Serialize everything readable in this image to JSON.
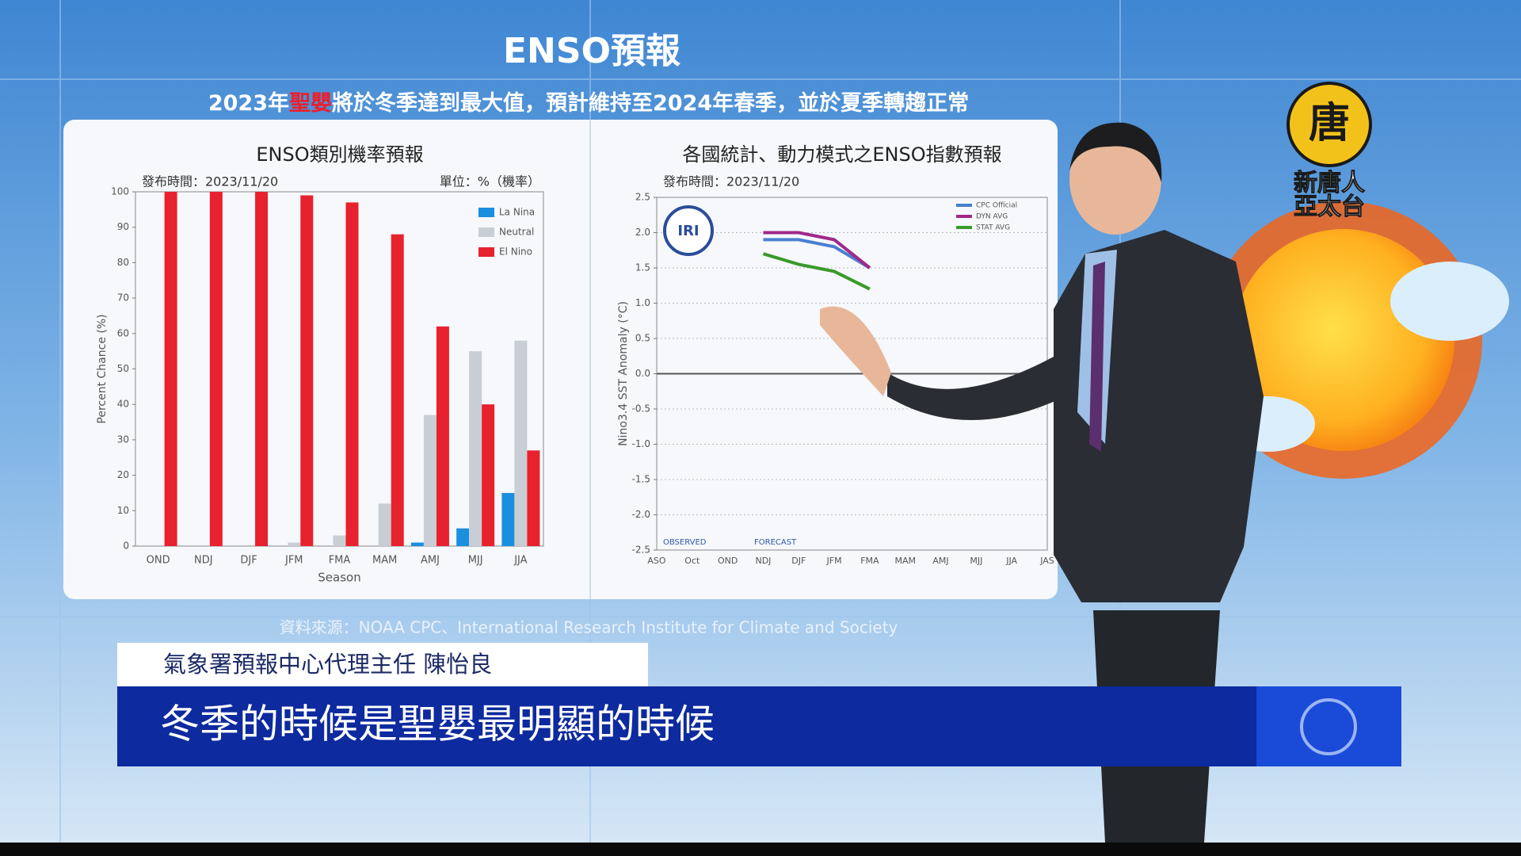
{
  "header": {
    "title": "ENSO預報",
    "subtitle": [
      "2023年",
      "聖嬰",
      "將於冬季達到最大值，預計維持至2024年春季，並於夏季轉趨正常"
    ]
  },
  "chart_data": [
    {
      "type": "bar",
      "title": "ENSO類別機率預報",
      "subtitle": "發布時間：2023/11/20",
      "unit": "單位：%（機率）",
      "ylabel": "Percent Chance (%)",
      "xlabel": "Season",
      "categories": [
        "OND",
        "NDJ",
        "DJF",
        "JFM",
        "FMA",
        "MAM",
        "AMJ",
        "MJJ",
        "JJA"
      ],
      "series": [
        {
          "name": "La Nina",
          "color": "#1a8fe0",
          "values": [
            0,
            0,
            0,
            0,
            0,
            0,
            1,
            5,
            15
          ]
        },
        {
          "name": "Neutral",
          "color": "#c9ced6",
          "values": [
            0,
            0,
            0,
            1,
            3,
            12,
            37,
            55,
            58
          ]
        },
        {
          "name": "El Nino",
          "color": "#e8212e",
          "values": [
            100,
            100,
            100,
            99,
            97,
            88,
            62,
            40,
            27
          ]
        }
      ],
      "ylim": [
        0,
        100
      ],
      "yticks": [
        0,
        10,
        20,
        30,
        40,
        50,
        60,
        70,
        80,
        90,
        100
      ],
      "grid": false
    },
    {
      "type": "line",
      "title": "各國統計、動力模式之ENSO指數預報",
      "subtitle": "發布時間：2023/11/20",
      "ylabel": "Nino3.4 SST Anomaly (°C)",
      "logo": "IRI",
      "annotations": [
        "OBSERVED",
        "FORECAST"
      ],
      "categories": [
        "ASO",
        "Oct",
        "OND",
        "NDJ",
        "DJF",
        "JFM",
        "FMA",
        "MAM",
        "AMJ",
        "MJJ",
        "JJA",
        "JAS"
      ],
      "series": [
        {
          "name": "CPC Official",
          "color": "#4a7fd0",
          "values": [
            null,
            null,
            null,
            1.9,
            1.9,
            1.8,
            1.5,
            null,
            null,
            null,
            null,
            null
          ]
        },
        {
          "name": "DYN AVG",
          "color": "#a0288c",
          "values": [
            null,
            null,
            null,
            2.0,
            2.0,
            1.9,
            1.5,
            null,
            null,
            null,
            null,
            null
          ]
        },
        {
          "name": "STAT AVG",
          "color": "#3a9a2a",
          "values": [
            null,
            null,
            null,
            1.7,
            1.55,
            1.45,
            1.2,
            null,
            null,
            null,
            null,
            null
          ]
        }
      ],
      "ylim": [
        -2.5,
        2.5
      ],
      "yticks": [
        -2.5,
        {
          "value": -2,
          "label": "-2.0"
        },
        -1.5,
        {
          "value": -1,
          "label": "-1.0"
        },
        -0.5,
        {
          "value": 0,
          "label": "0.0"
        },
        0.5,
        {
          "value": 1,
          "label": "1.0"
        },
        1.5,
        {
          "value": 2,
          "label": "2.0"
        },
        2.5
      ],
      "grid": true
    }
  ],
  "source": "資料來源：NOAA CPC、International Research Institute for Climate and Society",
  "caption": {
    "speaker": "氣象署預報中心代理主任 陳怡良",
    "text": "冬季的時候是聖嬰最明顯的時候"
  },
  "logo": {
    "line1": "新唐人",
    "line2": "亞太台",
    "mark": "唐"
  }
}
